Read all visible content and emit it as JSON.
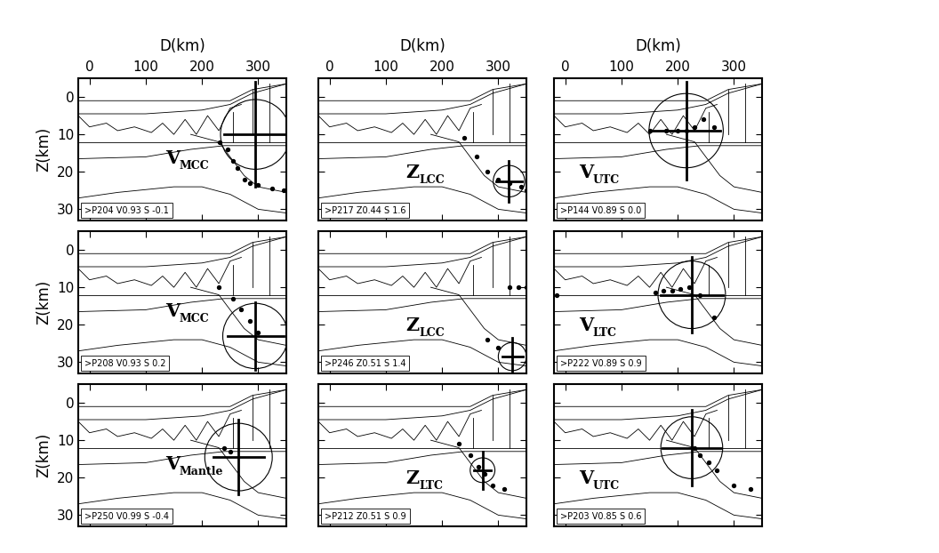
{
  "boundaries": [
    {
      "x": [
        -20,
        250,
        290,
        350
      ],
      "z": [
        1,
        1,
        -2,
        -3.5
      ]
    },
    {
      "x": [
        -20,
        100,
        200,
        250,
        290,
        350
      ],
      "z": [
        4.5,
        4.5,
        3.5,
        2,
        -1,
        -3.5
      ]
    },
    {
      "x": [
        -20,
        0,
        30,
        50,
        80,
        110,
        130,
        150,
        170,
        190,
        210,
        230,
        250,
        270
      ],
      "z": [
        5,
        8,
        7,
        9,
        8,
        9.5,
        7,
        10,
        6,
        10,
        5,
        9,
        3,
        2
      ]
    },
    {
      "x": [
        -20,
        350
      ],
      "z": [
        12,
        12
      ]
    },
    {
      "x": [
        -20,
        100,
        180,
        240,
        300,
        350
      ],
      "z": [
        16.5,
        16,
        14,
        13,
        13,
        13
      ]
    },
    {
      "x": [
        -20,
        50,
        150,
        200,
        250,
        300,
        350
      ],
      "z": [
        27,
        25.5,
        24,
        24,
        26,
        30,
        31
      ]
    },
    {
      "x": [
        180,
        230,
        255,
        275,
        300,
        350
      ],
      "z": [
        10,
        12,
        17,
        21,
        24,
        25.5
      ]
    },
    {
      "x": [
        255,
        255
      ],
      "z": [
        4,
        12
      ]
    },
    {
      "x": [
        290,
        290
      ],
      "z": [
        -2,
        10
      ]
    },
    {
      "x": [
        320,
        320
      ],
      "z": [
        -3.5,
        12
      ]
    }
  ],
  "chart_data": [
    {
      "type": "section",
      "label": "V",
      "label_sub": "MCC",
      "box_text": ">P204 V0.93 S -0.1",
      "xlabel": "D(km)",
      "ylabel": "Z(km)",
      "xlim": [
        -20,
        350
      ],
      "ylim": [
        33,
        -5
      ],
      "xticks": [
        0,
        100,
        200,
        300
      ],
      "yticks": [
        0,
        10,
        20,
        30
      ],
      "circle": {
        "x": 295,
        "z": 10,
        "radius": 62
      },
      "cross": {
        "x": 295,
        "z": 10,
        "dx": 55,
        "dz": 14
      },
      "points": {
        "x": [
          232,
          245,
          255,
          263,
          275,
          285,
          300,
          325,
          345
        ],
        "z": [
          12,
          14,
          17,
          19,
          22,
          23,
          23.5,
          24.5,
          25
        ]
      }
    },
    {
      "type": "section",
      "label": "Z",
      "label_sub": "LCC",
      "box_text": ">P217 Z0.44 S 1.6",
      "xlabel": "D(km)",
      "tick_labels": "x",
      "xlim": [
        -20,
        350
      ],
      "ylim": [
        33,
        -5
      ],
      "xticks": [
        0,
        100,
        200,
        300
      ],
      "yticks": [
        0,
        10,
        20,
        30
      ],
      "circle": {
        "x": 319,
        "z": 22.5,
        "radius": 28
      },
      "cross": {
        "x": 319,
        "z": 22.5,
        "dx": 23,
        "dz": 5.5
      },
      "points": {
        "x": [
          240,
          262,
          280,
          300,
          320,
          340,
          350
        ],
        "z": [
          11,
          16,
          20,
          22,
          23,
          24,
          25
        ]
      }
    },
    {
      "type": "section",
      "label": "V",
      "label_sub": "UTC",
      "box_text": ">P144 V0.89 S 0.0",
      "xlabel": "D(km)",
      "tick_labels": "x",
      "xlim": [
        -20,
        350
      ],
      "ylim": [
        33,
        -5
      ],
      "xticks": [
        0,
        100,
        200,
        300
      ],
      "yticks": [
        0,
        10,
        20,
        30
      ],
      "circle": {
        "x": 215,
        "z": 9,
        "radius": 66
      },
      "cross": {
        "x": 215,
        "z": 9,
        "dx": 60,
        "dz": 13
      },
      "points": {
        "x": [
          150,
          180,
          200,
          215,
          230,
          245,
          265
        ],
        "z": [
          9,
          9,
          9,
          9,
          8,
          6,
          8
        ]
      }
    },
    {
      "type": "section",
      "label": "V",
      "label_sub": "MCC",
      "box_text": ">P208 V0.93 S 0.2",
      "ylabel": "Z(km)",
      "tick_labels": "y",
      "xlim": [
        -20,
        350
      ],
      "ylim": [
        33,
        -5
      ],
      "xticks": [
        0,
        100,
        200,
        300
      ],
      "yticks": [
        0,
        10,
        20,
        30
      ],
      "circle": {
        "x": 295,
        "z": 23,
        "radius": 58
      },
      "cross": {
        "x": 295,
        "z": 23,
        "dx": 50,
        "dz": 9
      },
      "points": {
        "x": [
          230,
          255,
          270,
          285,
          300
        ],
        "z": [
          10,
          13,
          16,
          19,
          22
        ]
      }
    },
    {
      "type": "section",
      "label": "Z",
      "label_sub": "LCC",
      "box_text": ">P246 Z0.51 S 1.4",
      "tick_labels": false,
      "xlim": [
        -20,
        350
      ],
      "ylim": [
        33,
        -5
      ],
      "xticks": [
        0,
        100,
        200,
        300
      ],
      "yticks": [
        0,
        10,
        20,
        30
      ],
      "circle": {
        "x": 325,
        "z": 28.5,
        "radius": 25
      },
      "cross": {
        "x": 325,
        "z": 28.5,
        "dx": 18,
        "dz": 5
      },
      "points": {
        "x": [
          320,
          335,
          350,
          280,
          300
        ],
        "z": [
          10,
          10,
          10,
          24,
          26
        ]
      }
    },
    {
      "type": "section",
      "label": "V",
      "label_sub": "LTC",
      "box_text": ">P222 V0.89 S 0.9",
      "tick_labels": false,
      "xlim": [
        -20,
        350
      ],
      "ylim": [
        33,
        -5
      ],
      "xticks": [
        0,
        100,
        200,
        300
      ],
      "yticks": [
        0,
        10,
        20,
        30
      ],
      "circle": {
        "x": 225,
        "z": 12,
        "radius": 60
      },
      "cross": {
        "x": 225,
        "z": 12,
        "dx": 55,
        "dz": 10
      },
      "points": {
        "x": [
          -15,
          160,
          175,
          190,
          205,
          220,
          240,
          265
        ],
        "z": [
          12,
          11.5,
          11,
          11,
          10.5,
          10,
          12,
          18
        ]
      }
    },
    {
      "type": "section",
      "label": "V",
      "label_sub": "Mantle",
      "box_text": ">P250 V0.99 S -0.4",
      "ylabel": "Z(km)",
      "tick_labels": "y",
      "xlim": [
        -20,
        350
      ],
      "ylim": [
        33,
        -5
      ],
      "xticks": [
        0,
        100,
        200,
        300
      ],
      "yticks": [
        0,
        10,
        20,
        30
      ],
      "circle": {
        "x": 265,
        "z": 14.5,
        "radius": 60
      },
      "cross": {
        "x": 265,
        "z": 14.5,
        "dx": 45,
        "dz": 10
      },
      "points": {
        "x": [
          240,
          250
        ],
        "z": [
          12,
          13
        ]
      }
    },
    {
      "type": "section",
      "label": "Z",
      "label_sub": "LTC",
      "box_text": ">P212 Z0.51 S 0.9",
      "tick_labels": false,
      "xlim": [
        -20,
        350
      ],
      "ylim": [
        33,
        -5
      ],
      "xticks": [
        0,
        100,
        200,
        300
      ],
      "yticks": [
        0,
        10,
        20,
        30
      ],
      "circle": {
        "x": 272,
        "z": 18,
        "radius": 22
      },
      "cross": {
        "x": 272,
        "z": 18,
        "dx": 15,
        "dz": 5
      },
      "points": {
        "x": [
          230,
          250,
          265,
          275,
          290,
          310
        ],
        "z": [
          11,
          14,
          17,
          19,
          22,
          23
        ]
      }
    },
    {
      "type": "section",
      "label": "V",
      "label_sub": "UTC",
      "box_text": ">P203 V0.85 S 0.6",
      "tick_labels": false,
      "xlim": [
        -20,
        350
      ],
      "ylim": [
        33,
        -5
      ],
      "xticks": [
        0,
        100,
        200,
        300
      ],
      "yticks": [
        0,
        10,
        20,
        30
      ],
      "circle": {
        "x": 225,
        "z": 12,
        "radius": 55
      },
      "cross": {
        "x": 225,
        "z": 12,
        "dx": 52,
        "dz": 10
      },
      "points": {
        "x": [
          230,
          240,
          255,
          270,
          300,
          330
        ],
        "z": [
          12,
          14,
          16,
          18,
          22,
          23
        ]
      }
    }
  ]
}
